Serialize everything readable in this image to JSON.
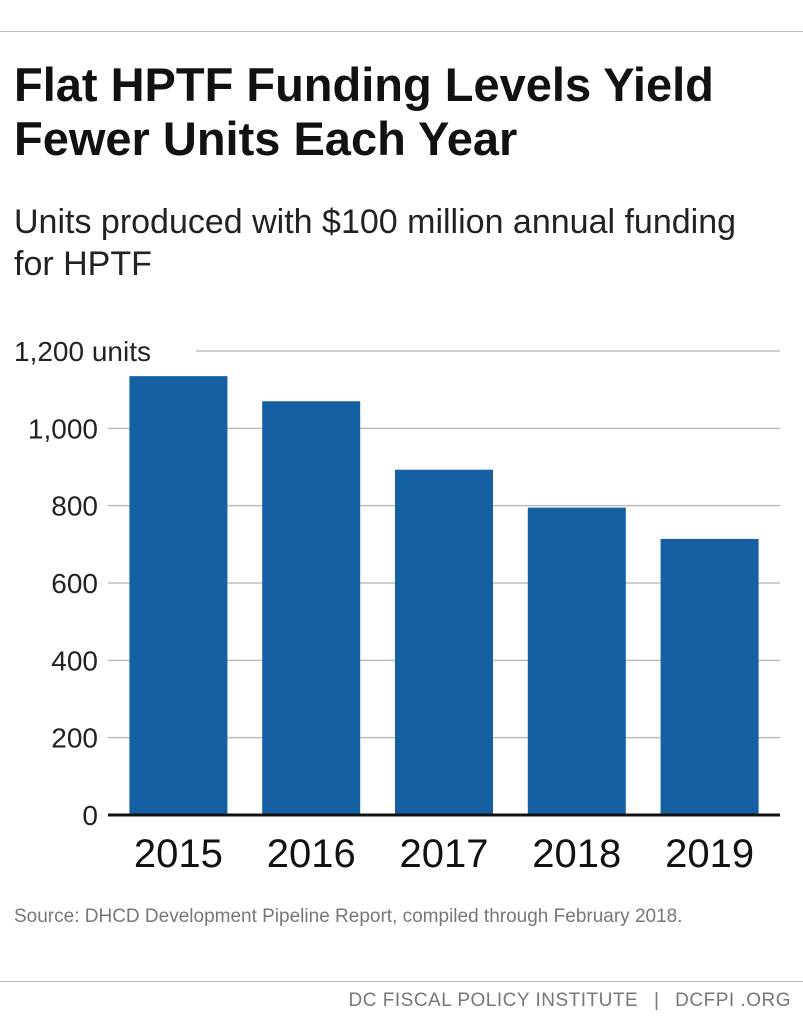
{
  "header": {
    "title": "Flat HPTF Funding Levels Yield Fewer Units Each Year",
    "subtitle": "Units produced with $100 million annual funding for HPTF"
  },
  "source_note": "Source: DHCD  Development Pipeline Report, compiled through February 2018.",
  "footer": {
    "org": "DC FISCAL POLICY INSTITUTE",
    "separator": "|",
    "site": "DCFPI .ORG"
  },
  "chart_data": {
    "type": "bar",
    "categories": [
      "2015",
      "2016",
      "2017",
      "2018",
      "2019"
    ],
    "values": [
      1135,
      1070,
      893,
      795,
      714
    ],
    "ylim": [
      0,
      1200
    ],
    "yticks": [
      0,
      200,
      400,
      600,
      800,
      1000,
      1200
    ],
    "ytick_labels": [
      "0",
      "200",
      "400",
      "600",
      "800",
      "1,000",
      "1,200 units"
    ],
    "grid": true,
    "bar_color": "#1460a3",
    "grid_color": "#bdbdbd",
    "axis_color": "#111111"
  }
}
